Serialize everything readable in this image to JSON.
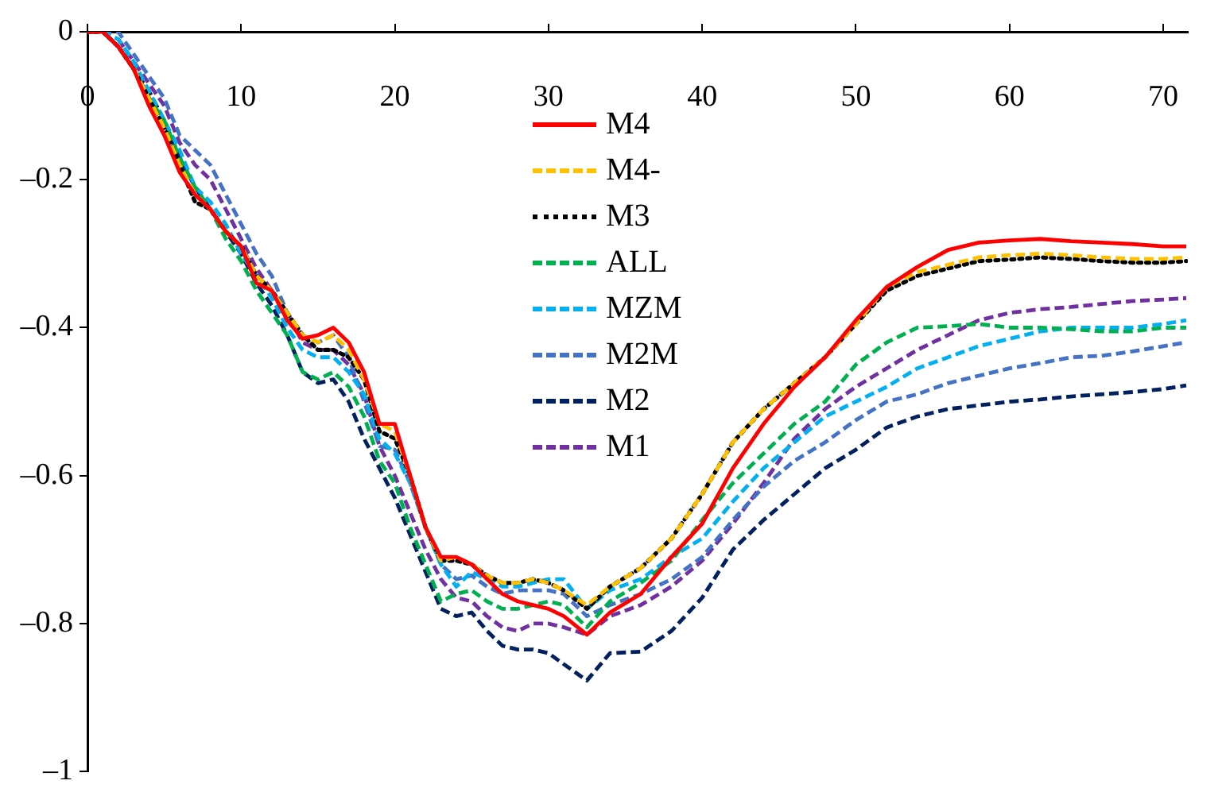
{
  "chart_data": {
    "type": "line",
    "x": [
      0,
      1,
      2,
      3,
      4,
      5,
      6,
      7,
      8,
      9,
      10,
      11,
      12,
      13,
      14,
      15,
      16,
      17,
      18,
      19,
      20,
      21,
      22,
      23,
      24,
      25,
      26,
      27,
      28,
      29,
      30,
      31,
      32.5,
      34,
      36,
      38,
      40,
      42,
      44,
      46,
      48,
      50,
      52,
      54,
      56,
      58,
      60,
      62,
      64,
      66,
      68,
      70,
      71.5
    ],
    "xlim": [
      0,
      71.6
    ],
    "xticks": [
      0,
      10,
      20,
      30,
      40,
      50,
      60,
      70
    ],
    "ylim": [
      -1,
      0
    ],
    "yticks": [
      {
        "value": -1,
        "label": "–1"
      },
      {
        "value": -0.8,
        "label": "–0.8"
      },
      {
        "value": -0.6,
        "label": "–0.6"
      },
      {
        "value": -0.4,
        "label": "–0.4"
      },
      {
        "value": -0.2,
        "label": "–0.2"
      },
      0
    ],
    "grid": false,
    "legend": "top",
    "marker": "none",
    "series": [
      {
        "name": "M4",
        "color": "#ff0000",
        "line_style": "solid",
        "values": [
          0,
          0,
          -0.02,
          -0.05,
          -0.1,
          -0.14,
          -0.19,
          -0.22,
          -0.24,
          -0.27,
          -0.29,
          -0.34,
          -0.35,
          -0.39,
          -0.415,
          -0.41,
          -0.4,
          -0.42,
          -0.46,
          -0.53,
          -0.53,
          -0.6,
          -0.67,
          -0.71,
          -0.71,
          -0.72,
          -0.74,
          -0.76,
          -0.77,
          -0.775,
          -0.78,
          -0.79,
          -0.815,
          -0.785,
          -0.76,
          -0.71,
          -0.665,
          -0.59,
          -0.53,
          -0.48,
          -0.44,
          -0.39,
          -0.345,
          -0.318,
          -0.295,
          -0.285,
          -0.282,
          -0.28,
          -0.283,
          -0.285,
          -0.287,
          -0.29,
          -0.29
        ]
      },
      {
        "name": "M4-",
        "color": "#ffc000",
        "line_style": "dashed",
        "values": [
          null,
          null,
          null,
          -0.05,
          -0.09,
          -0.13,
          -0.18,
          -0.22,
          -0.24,
          -0.27,
          -0.29,
          -0.33,
          -0.35,
          -0.38,
          -0.41,
          -0.42,
          -0.41,
          -0.43,
          -0.47,
          -0.53,
          -0.54,
          -0.6,
          -0.67,
          -0.715,
          -0.71,
          -0.72,
          -0.735,
          -0.745,
          -0.745,
          -0.74,
          -0.745,
          -0.755,
          -0.775,
          -0.75,
          -0.725,
          -0.685,
          -0.625,
          -0.555,
          -0.51,
          -0.475,
          -0.44,
          -0.395,
          -0.345,
          -0.325,
          -0.315,
          -0.305,
          -0.302,
          -0.3,
          -0.302,
          -0.305,
          -0.307,
          -0.307,
          -0.305
        ]
      },
      {
        "name": "M3",
        "color": "#000000",
        "line_style": "dotted",
        "values": [
          0,
          0,
          -0.02,
          -0.05,
          -0.09,
          -0.13,
          -0.18,
          -0.23,
          -0.24,
          -0.27,
          -0.29,
          -0.33,
          -0.35,
          -0.38,
          -0.41,
          -0.43,
          -0.43,
          -0.44,
          -0.47,
          -0.54,
          -0.55,
          -0.6,
          -0.67,
          -0.715,
          -0.715,
          -0.72,
          -0.735,
          -0.745,
          -0.745,
          -0.74,
          -0.745,
          -0.755,
          -0.78,
          -0.75,
          -0.725,
          -0.685,
          -0.625,
          -0.555,
          -0.51,
          -0.475,
          -0.44,
          -0.395,
          -0.35,
          -0.33,
          -0.32,
          -0.31,
          -0.308,
          -0.305,
          -0.307,
          -0.31,
          -0.312,
          -0.312,
          -0.31
        ]
      },
      {
        "name": "ALL",
        "color": "#00b050",
        "line_style": "dashed",
        "values": [
          null,
          null,
          null,
          -0.05,
          -0.09,
          -0.12,
          -0.17,
          -0.21,
          -0.24,
          -0.28,
          -0.31,
          -0.35,
          -0.38,
          -0.41,
          -0.46,
          -0.47,
          -0.46,
          -0.48,
          -0.52,
          -0.58,
          -0.61,
          -0.67,
          -0.72,
          -0.77,
          -0.76,
          -0.755,
          -0.77,
          -0.78,
          -0.78,
          -0.775,
          -0.77,
          -0.775,
          -0.805,
          -0.77,
          -0.745,
          -0.715,
          -0.66,
          -0.61,
          -0.57,
          -0.53,
          -0.5,
          -0.45,
          -0.42,
          -0.4,
          -0.398,
          -0.395,
          -0.4,
          -0.4,
          -0.402,
          -0.405,
          -0.405,
          -0.4,
          -0.4
        ]
      },
      {
        "name": "MZM",
        "color": "#00b0f0",
        "line_style": "dashed",
        "values": [
          0,
          0,
          -0.01,
          -0.04,
          -0.08,
          -0.12,
          -0.16,
          -0.21,
          -0.23,
          -0.26,
          -0.3,
          -0.33,
          -0.36,
          -0.4,
          -0.43,
          -0.44,
          -0.44,
          -0.46,
          -0.49,
          -0.55,
          -0.57,
          -0.61,
          -0.67,
          -0.72,
          -0.75,
          -0.73,
          -0.74,
          -0.75,
          -0.75,
          -0.745,
          -0.74,
          -0.74,
          -0.78,
          -0.755,
          -0.74,
          -0.71,
          -0.685,
          -0.635,
          -0.59,
          -0.555,
          -0.52,
          -0.5,
          -0.48,
          -0.455,
          -0.44,
          -0.425,
          -0.415,
          -0.405,
          -0.4,
          -0.4,
          -0.4,
          -0.395,
          -0.39
        ]
      },
      {
        "name": "M2M",
        "color": "#4472c4",
        "line_style": "dashed",
        "values": [
          0,
          0,
          0,
          -0.03,
          -0.06,
          -0.09,
          -0.14,
          -0.16,
          -0.18,
          -0.22,
          -0.26,
          -0.3,
          -0.33,
          -0.38,
          -0.41,
          -0.42,
          -0.41,
          -0.44,
          -0.5,
          -0.56,
          -0.565,
          -0.61,
          -0.67,
          -0.72,
          -0.74,
          -0.735,
          -0.75,
          -0.76,
          -0.755,
          -0.755,
          -0.755,
          -0.76,
          -0.79,
          -0.775,
          -0.76,
          -0.74,
          -0.71,
          -0.66,
          -0.615,
          -0.58,
          -0.555,
          -0.525,
          -0.5,
          -0.49,
          -0.475,
          -0.465,
          -0.455,
          -0.448,
          -0.44,
          -0.438,
          -0.432,
          -0.425,
          -0.42
        ]
      },
      {
        "name": "M2",
        "color": "#002060",
        "line_style": "dashed",
        "values": [
          0,
          0,
          -0.02,
          -0.05,
          -0.08,
          -0.12,
          -0.17,
          -0.21,
          -0.24,
          -0.27,
          -0.3,
          -0.34,
          -0.37,
          -0.41,
          -0.46,
          -0.475,
          -0.47,
          -0.5,
          -0.55,
          -0.59,
          -0.63,
          -0.68,
          -0.73,
          -0.78,
          -0.79,
          -0.785,
          -0.81,
          -0.83,
          -0.835,
          -0.835,
          -0.84,
          -0.855,
          -0.877,
          -0.84,
          -0.838,
          -0.81,
          -0.765,
          -0.7,
          -0.66,
          -0.625,
          -0.59,
          -0.565,
          -0.535,
          -0.52,
          -0.51,
          -0.505,
          -0.5,
          -0.497,
          -0.493,
          -0.49,
          -0.487,
          -0.483,
          -0.478
        ]
      },
      {
        "name": "M1",
        "color": "#7030a0",
        "line_style": "dashed",
        "values": [
          null,
          null,
          -0.01,
          -0.04,
          -0.07,
          -0.1,
          -0.15,
          -0.18,
          -0.2,
          -0.24,
          -0.28,
          -0.32,
          -0.35,
          -0.38,
          -0.42,
          -0.43,
          -0.43,
          -0.45,
          -0.49,
          -0.56,
          -0.6,
          -0.65,
          -0.7,
          -0.74,
          -0.765,
          -0.77,
          -0.79,
          -0.805,
          -0.81,
          -0.8,
          -0.8,
          -0.805,
          -0.815,
          -0.79,
          -0.775,
          -0.75,
          -0.715,
          -0.665,
          -0.61,
          -0.55,
          -0.51,
          -0.48,
          -0.455,
          -0.43,
          -0.41,
          -0.39,
          -0.38,
          -0.375,
          -0.372,
          -0.368,
          -0.364,
          -0.362,
          -0.36
        ]
      }
    ]
  }
}
